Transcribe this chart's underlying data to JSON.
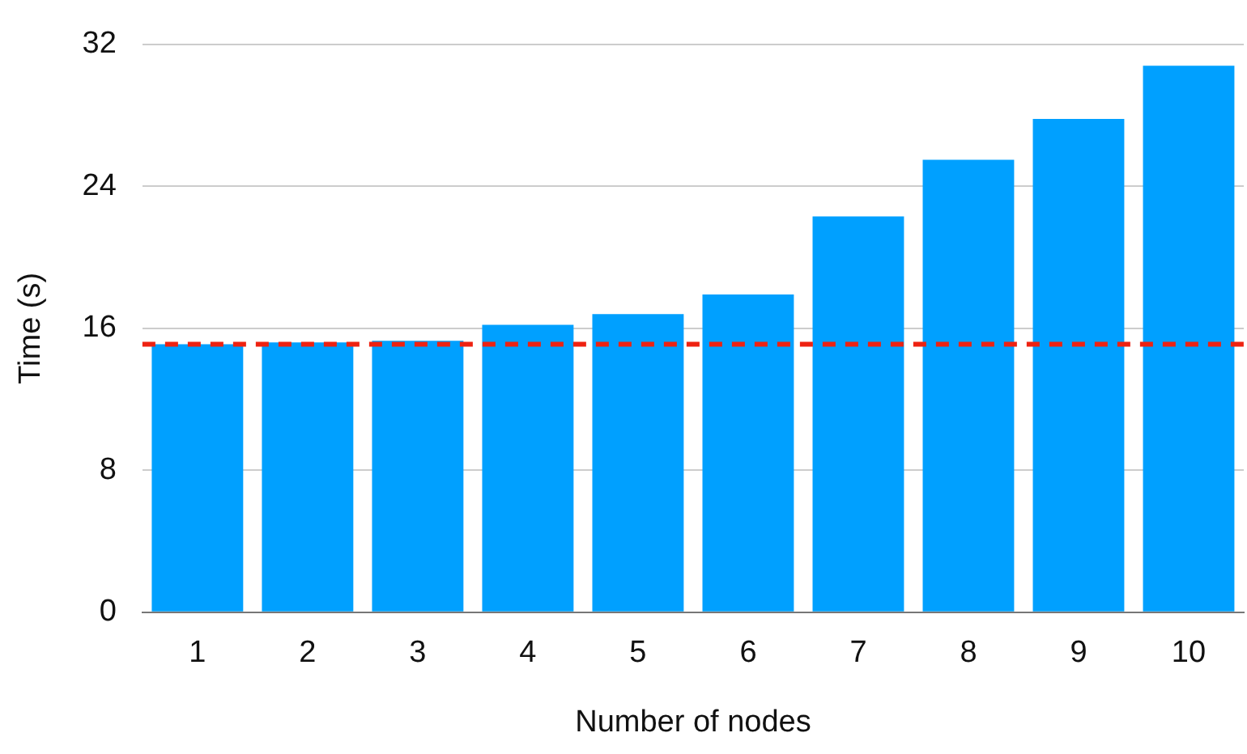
{
  "chart_data": {
    "type": "bar",
    "xlabel": "Number of nodes",
    "ylabel": "Time (s)",
    "categories": [
      "1",
      "2",
      "3",
      "4",
      "5",
      "6",
      "7",
      "8",
      "9",
      "10"
    ],
    "values": [
      15.1,
      15.2,
      15.3,
      16.2,
      16.8,
      17.9,
      22.3,
      25.5,
      27.8,
      30.8
    ],
    "color": "#00a0ff",
    "ylim": [
      0,
      32
    ],
    "yticks": [
      0,
      8,
      16,
      24,
      32
    ],
    "grid": "y",
    "ref_lines": [
      {
        "axis": "y",
        "value": 15.1,
        "color": "#ee2211",
        "line_style": "dashed"
      }
    ]
  }
}
